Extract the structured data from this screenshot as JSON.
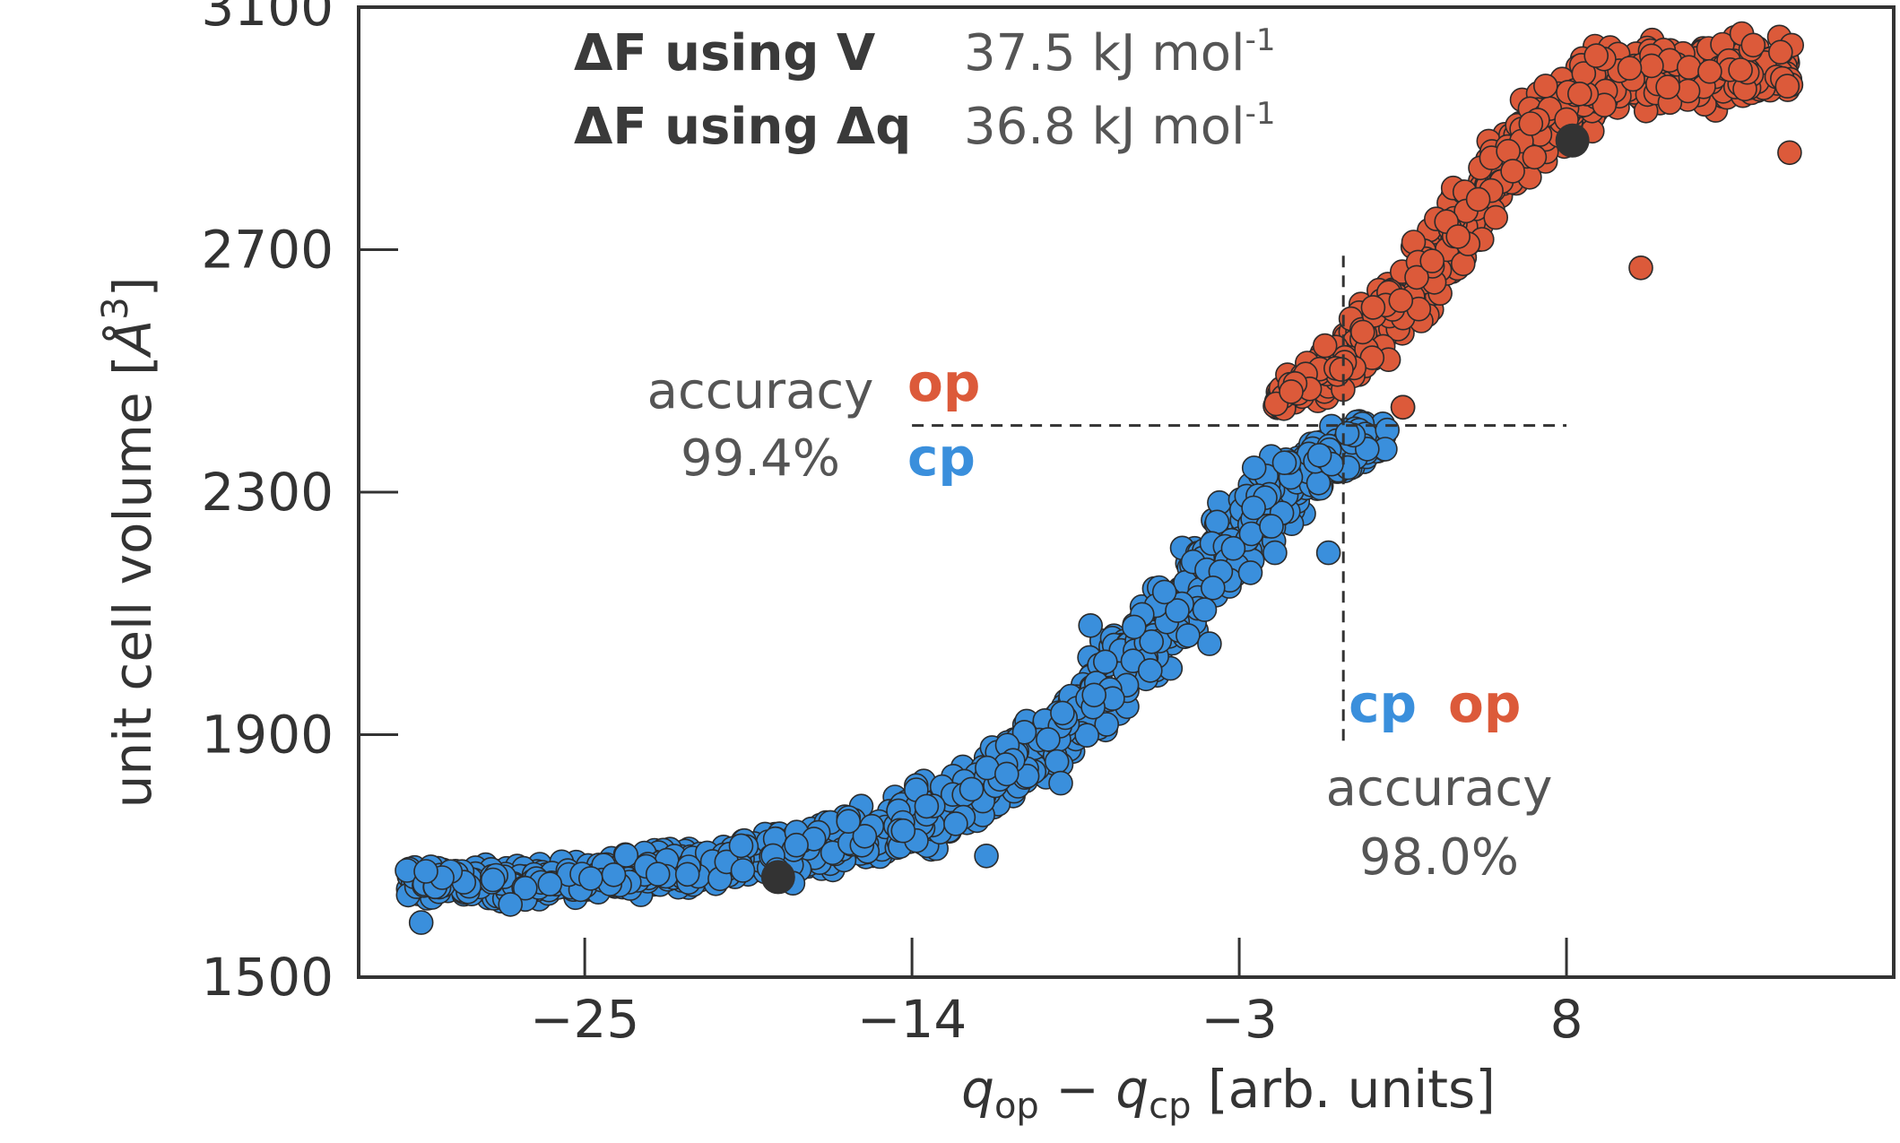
{
  "chart_data": {
    "type": "scatter",
    "xlabel": {
      "q": "q",
      "op": "op",
      "minus": " − ",
      "cp": "cp",
      "unit": "  [arb. units]"
    },
    "ylabel": {
      "pre": "unit cell volume  [",
      "A": "Å",
      "exp": "3",
      "post": "]"
    },
    "xlim": [
      -32.6,
      19.0
    ],
    "ylim": [
      1500,
      3100
    ],
    "xticks": [
      -25,
      -14,
      -3,
      8
    ],
    "xtick_labels": [
      "−25",
      "−14",
      "−3",
      "8"
    ],
    "yticks": [
      1500,
      1900,
      2300,
      2700,
      3100
    ],
    "ytick_labels": [
      "1500",
      "1900",
      "2300",
      "2700",
      "3100"
    ],
    "grid": false,
    "series": [
      {
        "name": "cp",
        "color": "#3a8fdc",
        "band": [
          [
            -31,
            1618,
            1700
          ],
          [
            -28,
            1615,
            1695
          ],
          [
            -25,
            1620,
            1705
          ],
          [
            -21,
            1635,
            1730
          ],
          [
            -18,
            1650,
            1760
          ],
          [
            -15,
            1675,
            1800
          ],
          [
            -12,
            1720,
            1870
          ],
          [
            -10,
            1780,
            1950
          ],
          [
            -8,
            1860,
            2060
          ],
          [
            -6,
            1950,
            2170
          ],
          [
            -4,
            2060,
            2290
          ],
          [
            -2,
            2180,
            2400
          ],
          [
            -0.5,
            2260,
            2430
          ],
          [
            1,
            2310,
            2440
          ],
          [
            2,
            2340,
            2440
          ]
        ],
        "outliers": [
          [
            -30.5,
            1590
          ],
          [
            -27.5,
            1620
          ],
          [
            -18,
            1655
          ],
          [
            -11.5,
            1700
          ],
          [
            -12,
            1810
          ],
          [
            -9,
            1820
          ],
          [
            -8,
            2080
          ],
          [
            -7.5,
            2020
          ],
          [
            -4,
            2050
          ],
          [
            -2.5,
            2340
          ],
          [
            -1.8,
            2200
          ],
          [
            0,
            2200
          ],
          [
            2.5,
            2440
          ]
        ]
      },
      {
        "name": "op",
        "color": "#dc5a3a",
        "band": [
          [
            -1.8,
            2420,
            2480
          ],
          [
            -1,
            2430,
            2520
          ],
          [
            0,
            2440,
            2560
          ],
          [
            1.2,
            2460,
            2640
          ],
          [
            2.5,
            2520,
            2720
          ],
          [
            4,
            2600,
            2800
          ],
          [
            5.5,
            2700,
            2920
          ],
          [
            7,
            2800,
            2990
          ],
          [
            8.5,
            2880,
            3050
          ],
          [
            10,
            2900,
            3060
          ],
          [
            12,
            2920,
            3065
          ],
          [
            14,
            2920,
            3070
          ],
          [
            15.6,
            2940,
            3060
          ]
        ],
        "outliers": [
          [
            2.5,
            2440
          ],
          [
            7.3,
            2970
          ],
          [
            10.5,
            2670
          ],
          [
            15.5,
            2860
          ],
          [
            9,
            3020
          ]
        ]
      }
    ],
    "minima": [
      [
        -18.5,
        1665
      ],
      [
        8.2,
        2880
      ]
    ],
    "divider_v": {
      "x": 0.5,
      "y_range": [
        1890,
        2690
      ]
    },
    "divider_h": {
      "y": 2410,
      "x_range": [
        -14,
        8
      ]
    }
  },
  "annotations": {
    "df_v_label": "ΔF using V",
    "df_v_value": "37.5 kJ mol",
    "df_v_exp": "-1",
    "df_q_label": "ΔF using Δq",
    "df_q_value": "36.8 kJ mol",
    "df_q_exp": "-1",
    "acc_h_label": "accuracy",
    "acc_h_value": "99.4%",
    "acc_h_top": "op",
    "acc_h_bottom": "cp",
    "acc_v_left": "cp",
    "acc_v_right": "op",
    "acc_v_label": "accuracy",
    "acc_v_value": "98.0%"
  },
  "colors": {
    "cp": "#3a8fdc",
    "op": "#dc5a3a",
    "minimum": "#333333",
    "text": "#333333",
    "text_light": "#555555"
  }
}
